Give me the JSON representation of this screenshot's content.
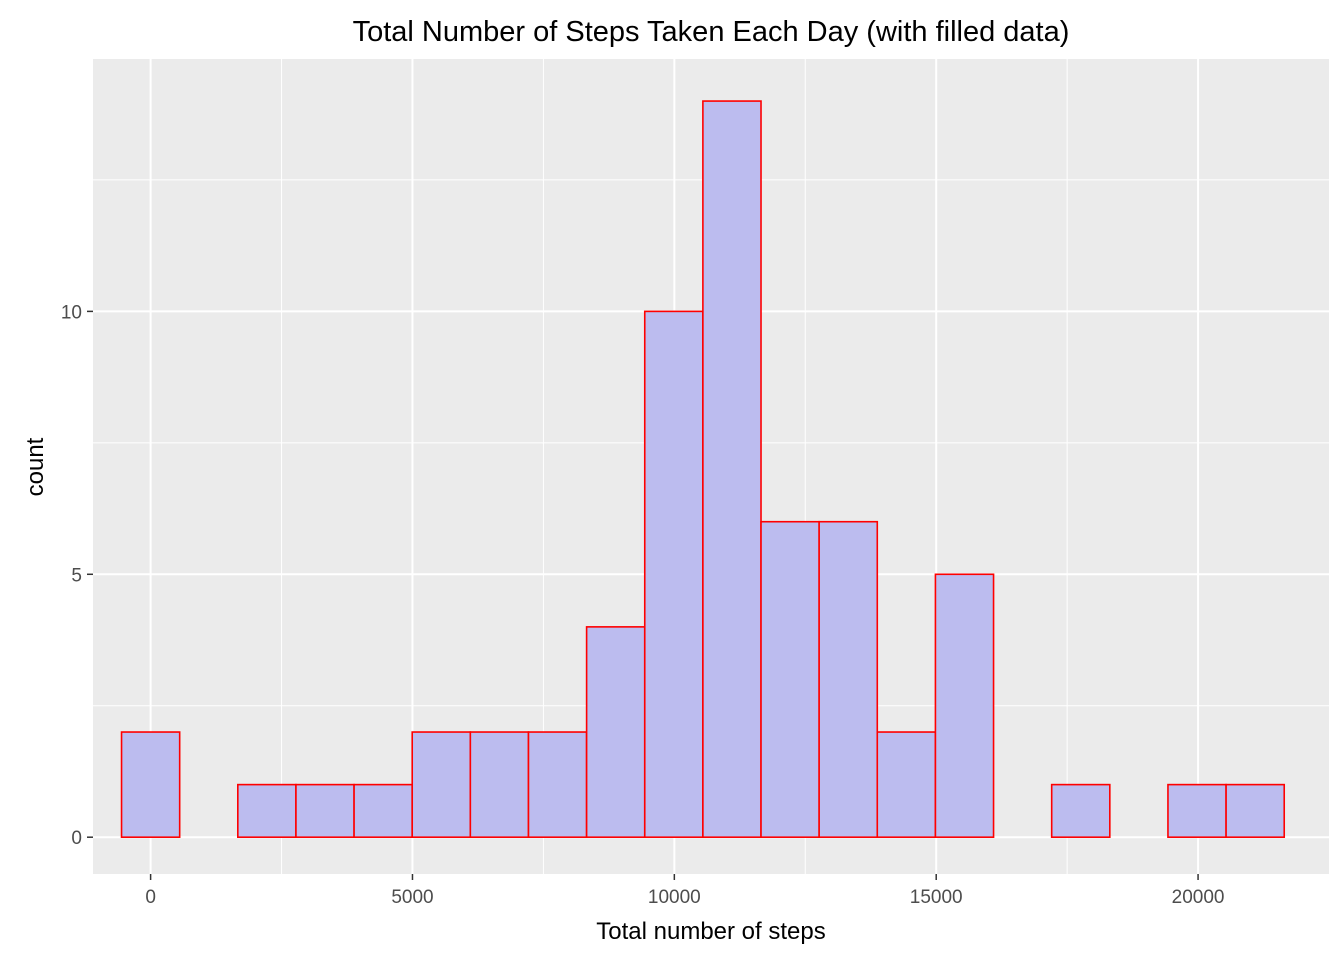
{
  "chart_data": {
    "type": "bar",
    "title": "Total Number of Steps Taken Each Day (with filled data)",
    "xlabel": "Total number of steps",
    "ylabel": "count",
    "xlim": [
      -1100,
      22500
    ],
    "ylim": [
      -0.7,
      14.8
    ],
    "x_ticks": [
      0,
      5000,
      10000,
      15000,
      20000
    ],
    "x_tick_labels": [
      "0",
      "5000",
      "10000",
      "15000",
      "20000"
    ],
    "y_ticks": [
      0,
      5,
      10
    ],
    "y_tick_labels": [
      "0",
      "5",
      "10"
    ],
    "bin_width": 1110,
    "bin_centers": [
      0,
      1110,
      2220,
      3330,
      4440,
      5550,
      6660,
      7770,
      8880,
      9990,
      11100,
      12210,
      13320,
      14430,
      15540,
      16650,
      17760,
      18870,
      19980,
      21090
    ],
    "values": [
      2,
      0,
      1,
      1,
      1,
      2,
      2,
      2,
      4,
      10,
      14,
      6,
      6,
      2,
      5,
      0,
      1,
      0,
      1,
      1
    ],
    "grid": true,
    "colors": {
      "panel_background": "#ebebeb",
      "grid_major": "#ffffff",
      "bar_fill": "#bcbcef",
      "bar_outline": "#ff0000",
      "tick_text": "#4d4d4d",
      "tick_mark": "#333333"
    }
  }
}
